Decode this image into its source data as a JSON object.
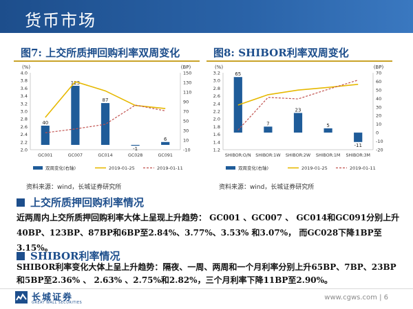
{
  "page": {
    "title": "货币市场",
    "url": "www.cgws.com",
    "page_number": "6",
    "url_separator": "|"
  },
  "logo": {
    "name_cn": "长城证券",
    "name_en": "GREAT WALL SECURITIES"
  },
  "charts": {
    "left": {
      "heading": "图7:  上交所质押回购利率双周变化",
      "source": "资料来源：wind，长城证券研究所",
      "left_unit": "(%)",
      "right_unit": "(BP)"
    },
    "right": {
      "heading": "图8:  SHIBOR利率双周变化",
      "source": "资料来源：wind，长城证券研究所",
      "left_unit": "(%)",
      "right_unit": "(BP)"
    }
  },
  "sections": [
    {
      "heading": "上交所质押回购利率情况",
      "body": "近两周内上交所质押回购利率大体上呈现上升趋势： GC001 、GC007 、 GC014和GC091分别上升40BP、123BP、87BP和6BP至2.84%、3.77%、3.53% 和3.07%， 而GC028下降1BP至3.15%。"
    },
    {
      "heading": "SHIBOR利率情况",
      "body": "SHIBOR利率变化大体上呈上升趋势：隔夜、一周、两周和一个月利率分别上升65BP、7BP、23BP和5BP至2.36% 、 2.63% 、2.75%和2.82%，三个月利率下降11BP至2.90%。"
    }
  ],
  "colors": {
    "bar": "#1f5c99",
    "line1": "#e6b800",
    "line2": "#c0504d",
    "brand": "#1d4e8c"
  },
  "chart_data": [
    {
      "type": "bar",
      "title": "图7:  上交所质押回购利率双周变化",
      "categories": [
        "GC001",
        "GC007",
        "GC014",
        "GC028",
        "GC091"
      ],
      "ylim_left": [
        2.0,
        4.0
      ],
      "yticks_left": [
        "2.0",
        "2.2",
        "2.4",
        "2.6",
        "2.8",
        "3.0",
        "3.2",
        "3.4",
        "3.6",
        "3.8",
        "4.0"
      ],
      "ylim_right": [
        -10,
        150
      ],
      "yticks_right": [
        "-10",
        "10",
        "30",
        "50",
        "70",
        "90",
        "110",
        "130",
        "150"
      ],
      "series": [
        {
          "name": "双周变化(右轴)",
          "kind": "bar",
          "axis": "right",
          "values": [
            40,
            123,
            87,
            -1,
            6
          ],
          "labels": [
            "40",
            "123",
            "87",
            "-1",
            "6"
          ]
        },
        {
          "name": "2019-01-25",
          "kind": "line",
          "axis": "left",
          "values": [
            2.84,
            3.77,
            3.53,
            3.15,
            3.07
          ]
        },
        {
          "name": "2019-01-11",
          "kind": "line",
          "axis": "left",
          "values": [
            2.44,
            2.54,
            2.66,
            3.16,
            3.01
          ]
        }
      ]
    },
    {
      "type": "bar",
      "title": "图8:  SHIBOR利率双周变化",
      "categories": [
        "SHIBOR:O/N",
        "SHIBOR:1W",
        "SHIBOR:2W",
        "SHIBOR:1M",
        "SHIBOR:3M"
      ],
      "ylim_left": [
        1.2,
        3.2
      ],
      "yticks_left": [
        "1.2",
        "1.4",
        "1.6",
        "1.8",
        "2.0",
        "2.2",
        "2.4",
        "2.6",
        "2.8",
        "3.0",
        "3.2"
      ],
      "ylim_right": [
        -20,
        70
      ],
      "yticks_right": [
        "-20",
        "-10",
        "0",
        "10",
        "20",
        "30",
        "40",
        "50",
        "60",
        "70"
      ],
      "series": [
        {
          "name": "双周变化(右轴)",
          "kind": "bar",
          "axis": "right",
          "values": [
            65,
            7,
            23,
            5,
            -11
          ],
          "labels": [
            "65",
            "7",
            "23",
            "5",
            "-11"
          ]
        },
        {
          "name": "2019-01-25",
          "kind": "line",
          "axis": "left",
          "values": [
            2.36,
            2.63,
            2.75,
            2.82,
            2.9
          ]
        },
        {
          "name": "2019-01-11",
          "kind": "line",
          "axis": "left",
          "values": [
            1.71,
            2.56,
            2.52,
            2.77,
            3.01
          ]
        }
      ]
    }
  ]
}
